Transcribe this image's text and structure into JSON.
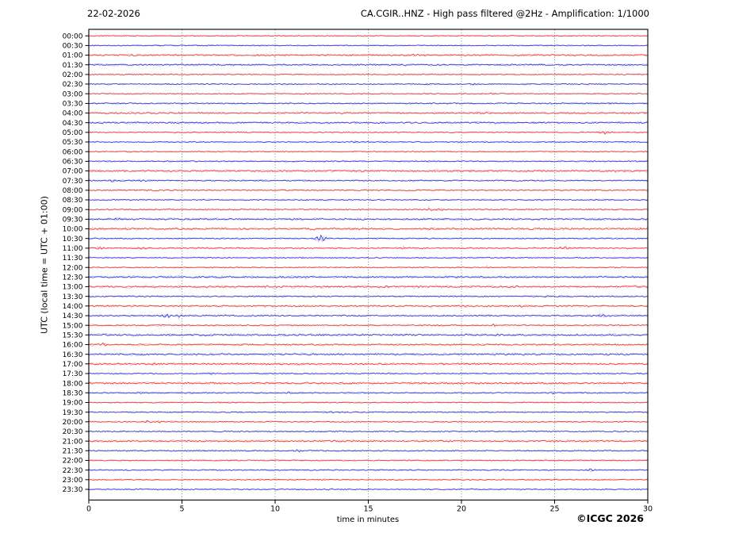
{
  "header": {
    "date": "22-02-2026",
    "title": "CA.CGIR..HNZ - High pass filtered @2Hz - Amplification: 1/1000"
  },
  "axes": {
    "y_label": "UTC (local time = UTC + 01:00)",
    "x_label": "time in minutes",
    "x_ticks": [
      0,
      5,
      10,
      15,
      20,
      25,
      30
    ],
    "gridlines_minutes": [
      5,
      10,
      15,
      20,
      25
    ]
  },
  "footer": {
    "copyright": "©ICGC 2026"
  },
  "palette": {
    "red": "#e62e2e",
    "red_light": "#f6aeae",
    "blue": "#2a2ad2",
    "blue_light": "#aeaeec",
    "grid": "#7a7a7a",
    "axis": "#000000"
  },
  "chart_data": {
    "type": "line",
    "subtype": "helicorder-seismogram",
    "x_range_minutes": [
      0,
      30
    ],
    "minutes_per_row": 30,
    "legend": "alternating red (on the hour) and blue (half hour) half-hour traces",
    "rows": [
      {
        "label": "00:00",
        "color": "red",
        "noise": 0.5,
        "events": []
      },
      {
        "label": "00:30",
        "color": "blue",
        "noise": 0.55,
        "events": []
      },
      {
        "label": "01:00",
        "color": "red",
        "noise": 0.8,
        "events": [
          {
            "m": 17.6,
            "a": 1.8,
            "d": 0.5
          }
        ]
      },
      {
        "label": "01:30",
        "color": "blue",
        "noise": 0.85,
        "events": []
      },
      {
        "label": "02:00",
        "color": "red",
        "noise": 0.6,
        "events": []
      },
      {
        "label": "02:30",
        "color": "blue",
        "noise": 0.6,
        "events": [
          {
            "m": 20.6,
            "a": 1.2,
            "d": 0.3
          }
        ]
      },
      {
        "label": "03:00",
        "color": "red",
        "noise": 0.55,
        "events": [
          {
            "m": 21.7,
            "a": 1.2,
            "d": 0.3
          }
        ]
      },
      {
        "label": "03:30",
        "color": "blue",
        "noise": 0.7,
        "events": []
      },
      {
        "label": "04:00",
        "color": "red",
        "noise": 0.9,
        "events": []
      },
      {
        "label": "04:30",
        "color": "blue",
        "noise": 0.85,
        "events": []
      },
      {
        "label": "05:00",
        "color": "red",
        "noise": 0.6,
        "events": [
          {
            "m": 27.6,
            "a": 2.2,
            "d": 0.6
          }
        ]
      },
      {
        "label": "05:30",
        "color": "blue",
        "noise": 0.6,
        "events": [
          {
            "m": 14.2,
            "a": 1.8,
            "d": 0.4
          }
        ]
      },
      {
        "label": "06:00",
        "color": "red",
        "noise": 0.55,
        "events": []
      },
      {
        "label": "06:30",
        "color": "blue",
        "noise": 0.65,
        "events": []
      },
      {
        "label": "07:00",
        "color": "red",
        "noise": 0.95,
        "events": []
      },
      {
        "label": "07:30",
        "color": "blue",
        "noise": 0.7,
        "events": [
          {
            "m": 1.2,
            "a": 1.8,
            "d": 0.5
          },
          {
            "m": 2.8,
            "a": 1.5,
            "d": 0.4
          }
        ]
      },
      {
        "label": "08:00",
        "color": "red",
        "noise": 0.65,
        "events": []
      },
      {
        "label": "08:30",
        "color": "blue",
        "noise": 0.6,
        "events": []
      },
      {
        "label": "09:00",
        "color": "red",
        "noise": 0.65,
        "events": [
          {
            "m": 18.3,
            "a": 2.0,
            "d": 0.4
          },
          {
            "m": 18.9,
            "a": 1.8,
            "d": 0.3
          }
        ]
      },
      {
        "label": "09:30",
        "color": "blue",
        "noise": 0.9,
        "events": [
          {
            "m": 1.5,
            "a": 1.2,
            "d": 0.3
          }
        ]
      },
      {
        "label": "10:00",
        "color": "red",
        "noise": 1.0,
        "events": []
      },
      {
        "label": "10:30",
        "color": "blue",
        "noise": 0.65,
        "events": [
          {
            "m": 12.45,
            "a": 4.5,
            "d": 0.6
          }
        ]
      },
      {
        "label": "11:00",
        "color": "red",
        "noise": 0.7,
        "events": [
          {
            "m": 0.6,
            "a": 1.8,
            "d": 0.4
          },
          {
            "m": 2.9,
            "a": 1.8,
            "d": 0.5
          },
          {
            "m": 16.9,
            "a": 1.5,
            "d": 0.4
          },
          {
            "m": 25.5,
            "a": 2.2,
            "d": 0.8
          }
        ]
      },
      {
        "label": "11:30",
        "color": "blue",
        "noise": 0.55,
        "events": []
      },
      {
        "label": "12:00",
        "color": "red",
        "noise": 0.6,
        "events": [
          {
            "m": 21.5,
            "a": 1.5,
            "d": 0.4
          }
        ]
      },
      {
        "label": "12:30",
        "color": "blue",
        "noise": 0.9,
        "events": [
          {
            "m": 11.7,
            "a": 1.3,
            "d": 0.3
          }
        ]
      },
      {
        "label": "13:00",
        "color": "red",
        "noise": 1.0,
        "events": [
          {
            "m": 16.0,
            "a": 1.5,
            "d": 0.3
          },
          {
            "m": 22.9,
            "a": 1.6,
            "d": 0.3
          }
        ]
      },
      {
        "label": "13:30",
        "color": "blue",
        "noise": 0.7,
        "events": [
          {
            "m": 0.9,
            "a": 1.3,
            "d": 0.3
          },
          {
            "m": 24.6,
            "a": 1.4,
            "d": 0.3
          }
        ]
      },
      {
        "label": "14:00",
        "color": "red",
        "noise": 0.85,
        "events": [
          {
            "m": 23.2,
            "a": 1.3,
            "d": 0.3
          }
        ]
      },
      {
        "label": "14:30",
        "color": "blue",
        "noise": 0.75,
        "events": [
          {
            "m": 4.2,
            "a": 3.2,
            "d": 0.5
          },
          {
            "m": 4.8,
            "a": 2.0,
            "d": 0.3
          },
          {
            "m": 27.5,
            "a": 1.4,
            "d": 1.5
          }
        ]
      },
      {
        "label": "15:00",
        "color": "red",
        "noise": 0.7,
        "events": [
          {
            "m": 3.8,
            "a": 1.5,
            "d": 0.3
          },
          {
            "m": 21.7,
            "a": 1.5,
            "d": 0.3
          }
        ]
      },
      {
        "label": "15:30",
        "color": "blue",
        "noise": 0.95,
        "events": [
          {
            "m": 6.2,
            "a": 1.3,
            "d": 0.3
          }
        ]
      },
      {
        "label": "16:00",
        "color": "red",
        "noise": 0.85,
        "events": [
          {
            "m": 0.8,
            "a": 2.0,
            "d": 0.5
          }
        ]
      },
      {
        "label": "16:30",
        "color": "blue",
        "noise": 0.95,
        "events": [
          {
            "m": 23.4,
            "a": 1.4,
            "d": 0.5
          }
        ]
      },
      {
        "label": "17:00",
        "color": "red",
        "noise": 0.9,
        "events": [
          {
            "m": 3.6,
            "a": 2.2,
            "d": 0.5
          }
        ]
      },
      {
        "label": "17:30",
        "color": "blue",
        "noise": 0.65,
        "events": [
          {
            "m": 6.5,
            "a": 1.3,
            "d": 0.3
          }
        ]
      },
      {
        "label": "18:00",
        "color": "red",
        "noise": 0.95,
        "events": [
          {
            "m": 20.0,
            "a": 1.4,
            "d": 0.3
          }
        ]
      },
      {
        "label": "18:30",
        "color": "blue",
        "noise": 0.7,
        "events": [
          {
            "m": 2.8,
            "a": 1.3,
            "d": 0.3
          },
          {
            "m": 10.8,
            "a": 1.4,
            "d": 0.3
          },
          {
            "m": 25.0,
            "a": 1.3,
            "d": 0.3
          }
        ]
      },
      {
        "label": "19:00",
        "color": "red",
        "noise": 0.6,
        "events": []
      },
      {
        "label": "19:30",
        "color": "blue",
        "noise": 0.6,
        "events": [
          {
            "m": 13.0,
            "a": 1.2,
            "d": 0.3
          }
        ]
      },
      {
        "label": "20:00",
        "color": "red",
        "noise": 0.6,
        "events": [
          {
            "m": 3.1,
            "a": 1.6,
            "d": 0.25
          },
          {
            "m": 3.75,
            "a": 1.8,
            "d": 0.3
          }
        ]
      },
      {
        "label": "20:30",
        "color": "blue",
        "noise": 0.6,
        "events": []
      },
      {
        "label": "21:00",
        "color": "red",
        "noise": 0.9,
        "events": []
      },
      {
        "label": "21:30",
        "color": "blue",
        "noise": 0.7,
        "events": [
          {
            "m": 11.2,
            "a": 1.3,
            "d": 0.3
          }
        ]
      },
      {
        "label": "22:00",
        "color": "red",
        "noise": 0.65,
        "events": []
      },
      {
        "label": "22:30",
        "color": "blue",
        "noise": 0.6,
        "events": [
          {
            "m": 26.9,
            "a": 2.0,
            "d": 0.4
          }
        ]
      },
      {
        "label": "23:00",
        "color": "red",
        "noise": 0.6,
        "events": []
      },
      {
        "label": "23:30",
        "color": "blue",
        "noise": 0.6,
        "events": [
          {
            "m": 13.0,
            "a": 1.2,
            "d": 0.3
          }
        ]
      }
    ]
  }
}
